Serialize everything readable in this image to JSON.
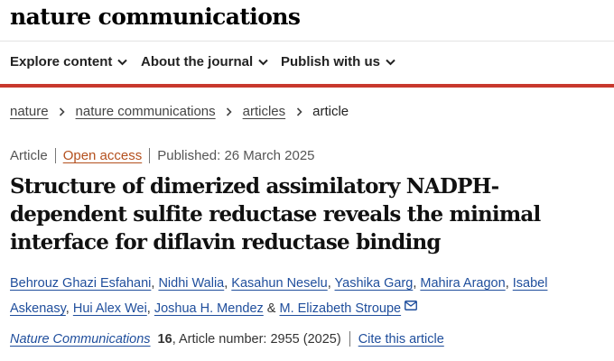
{
  "header": {
    "logo": "nature communications",
    "nav": [
      {
        "label": "Explore content"
      },
      {
        "label": "About the journal"
      },
      {
        "label": "Publish with us"
      }
    ]
  },
  "breadcrumb": {
    "items": [
      "nature",
      "nature communications",
      "articles"
    ],
    "current": "article"
  },
  "meta": {
    "type": "Article",
    "access": "Open access",
    "published": "Published: 26 March 2025"
  },
  "article": {
    "title": "Structure of dimerized assimilatory NADPH-dependent sulfite reductase reveals the minimal interface for diflavin reductase binding",
    "authors": [
      "Behrouz Ghazi Esfahani",
      "Nidhi Walia",
      "Kasahun Neselu",
      "Yashika Garg",
      "Mahira Aragon",
      "Isabel Askenasy",
      "Hui Alex Wei",
      "Joshua H. Mendez",
      "M. Elizabeth Stroupe"
    ],
    "separator": ",",
    "ampersand": "&"
  },
  "citation": {
    "journal": "Nature Communications",
    "volume": "16",
    "article_number": ", Article number: 2955 (2025)",
    "cite_label": "Cite this article"
  },
  "colors": {
    "accent_red": "#c8382d",
    "link_blue": "#1f4e9c",
    "open_access_orange": "#b4501e"
  }
}
